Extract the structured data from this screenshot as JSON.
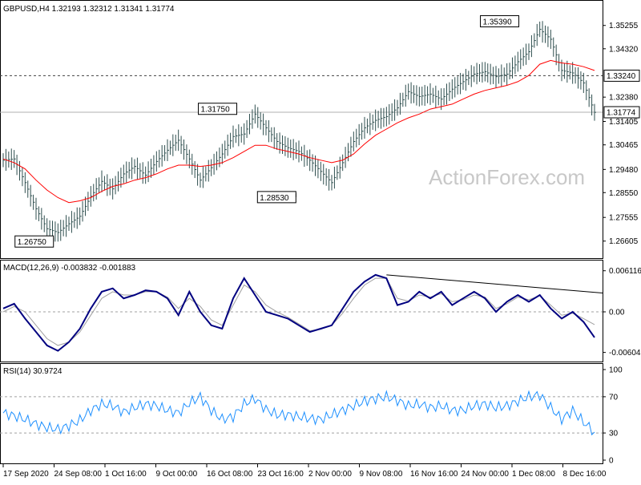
{
  "chart_data": [
    {
      "type": "line",
      "title": "GBPUSD,H4  1.32193 1.32312 1.31341 1.31774",
      "ylim": [
        1.2605,
        1.3589
      ],
      "y_ticks": [
        "1.35255",
        "1.34320",
        "1.32380",
        "1.31405",
        "1.30465",
        "1.29480",
        "1.28550",
        "1.27555",
        "1.26605"
      ],
      "price_labels": [
        {
          "text": "1.33240",
          "value": 1.3324
        },
        {
          "text": "1.31774",
          "value": 1.31774
        }
      ],
      "annotations": [
        {
          "text": "1.35390",
          "value": 1.3539,
          "at": 0.872
        },
        {
          "text": "1.31750",
          "value": 1.3175,
          "at": 0.395
        },
        {
          "text": "1.28530",
          "value": 1.2853,
          "at": 0.495
        },
        {
          "text": "1.26750",
          "value": 1.2675,
          "at": 0.085
        }
      ],
      "series": [
        {
          "values": [
            1.2985,
            1.299,
            1.2895,
            1.279,
            1.271,
            1.2695,
            1.273,
            1.276,
            1.284,
            1.29,
            1.287,
            1.293,
            1.296,
            1.2925,
            1.298,
            1.3025,
            1.3065,
            1.299,
            1.2905,
            1.2955,
            1.301,
            1.308,
            1.309,
            1.317,
            1.3115,
            1.306,
            1.3035,
            1.302,
            1.2985,
            1.294,
            1.2895,
            1.2975,
            1.306,
            1.3115,
            1.3145,
            1.316,
            1.3195,
            1.326,
            1.324,
            1.325,
            1.323,
            1.327,
            1.33,
            1.333,
            1.334,
            1.332,
            1.333,
            1.338,
            1.342,
            1.351,
            1.347,
            1.3345,
            1.3335,
            1.3295,
            1.3177
          ]
        },
        {
          "values": [
            1.299,
            1.2975,
            1.295,
            1.2905,
            1.2865,
            1.2835,
            1.2815,
            1.2822,
            1.2835,
            1.286,
            1.288,
            1.289,
            1.2905,
            1.2915,
            1.293,
            1.295,
            1.2965,
            1.2965,
            1.296,
            1.2965,
            1.2975,
            1.2995,
            1.302,
            1.3045,
            1.3045,
            1.303,
            1.302,
            1.301,
            1.2995,
            1.2985,
            1.2975,
            1.2985,
            1.301,
            1.305,
            1.3085,
            1.311,
            1.3135,
            1.3155,
            1.317,
            1.319,
            1.32,
            1.321,
            1.323,
            1.325,
            1.3265,
            1.3275,
            1.3285,
            1.33,
            1.3325,
            1.337,
            1.3385,
            1.3375,
            1.337,
            1.336,
            1.3345
          ]
        }
      ]
    },
    {
      "type": "line",
      "title": "MACD(12,26,9) -0.003832 -0.001883",
      "ylim": [
        -0.0068,
        0.0068
      ],
      "y_ticks": [
        "0.006116",
        "0.00",
        "-0.00604"
      ],
      "series": [
        {
          "values": [
            0.0005,
            0.0012,
            -0.001,
            -0.003,
            -0.005,
            -0.0058,
            -0.0045,
            -0.0025,
            0.0005,
            0.003,
            0.0035,
            0.002,
            0.0025,
            0.0032,
            0.003,
            0.002,
            -0.0005,
            0.003,
            0.0,
            -0.002,
            -0.0025,
            0.002,
            0.005,
            0.0025,
            0.0,
            -0.0005,
            -0.001,
            -0.002,
            -0.003,
            -0.0025,
            -0.002,
            0.0005,
            0.003,
            0.0045,
            0.0055,
            0.005,
            0.001,
            0.0015,
            0.003,
            0.002,
            0.003,
            0.001,
            0.002,
            0.003,
            0.002,
            0.0,
            0.0015,
            0.0025,
            0.0015,
            0.0025,
            0.0005,
            -0.001,
            0.0,
            -0.0015,
            -0.0038
          ]
        },
        {
          "values": [
            0.0,
            0.0008,
            0.0,
            -0.002,
            -0.004,
            -0.005,
            -0.0045,
            -0.003,
            -0.0005,
            0.002,
            0.003,
            0.0025,
            0.0025,
            0.003,
            0.003,
            0.0022,
            0.0005,
            0.002,
            0.0008,
            -0.0012,
            -0.002,
            0.001,
            0.004,
            0.003,
            0.001,
            0.0,
            -0.0008,
            -0.0018,
            -0.0028,
            -0.0026,
            -0.002,
            -0.0002,
            0.002,
            0.004,
            0.005,
            0.005,
            0.002,
            0.0016,
            0.0025,
            0.0022,
            0.0027,
            0.0015,
            0.0018,
            0.0025,
            0.0022,
            0.0005,
            0.0012,
            0.0022,
            0.0018,
            0.0024,
            0.001,
            -0.0005,
            -0.0002,
            -0.001,
            -0.0019
          ]
        }
      ]
    },
    {
      "type": "line",
      "title": "RSI(14) 30.9724",
      "ylim": [
        0,
        100
      ],
      "y_ticks": [
        "100",
        "70",
        "30",
        "0"
      ],
      "levels": [
        70,
        30
      ],
      "series": [
        {
          "values": [
            52,
            49,
            45,
            40,
            36,
            34,
            38,
            44,
            55,
            62,
            60,
            53,
            58,
            62,
            60,
            55,
            52,
            63,
            70,
            55,
            45,
            48,
            62,
            68,
            56,
            50,
            50,
            48,
            46,
            45,
            50,
            55,
            60,
            65,
            68,
            70,
            66,
            60,
            62,
            58,
            60,
            55,
            55,
            60,
            62,
            58,
            60,
            65,
            70,
            72,
            58,
            45,
            55,
            42,
            31
          ]
        }
      ]
    }
  ],
  "x_ticks": [
    "17 Sep 2020",
    "24 Sep 08:00",
    "1 Oct 16:00",
    "9 Oct 00:00",
    "16 Oct 08:00",
    "23 Oct 16:00",
    "2 Nov 00:00",
    "9 Nov 08:00",
    "16 Nov 16:00",
    "24 Nov 00:00",
    "1 Dec 08:00",
    "8 Dec 16:00"
  ],
  "watermark": "ActionForex.com",
  "colors": {
    "macd": "#000080",
    "signal": "#a0a0a0",
    "ma": "#ff0000",
    "rsi": "#1e90ff",
    "price": "#2f4f4f",
    "grid": "#808080"
  }
}
